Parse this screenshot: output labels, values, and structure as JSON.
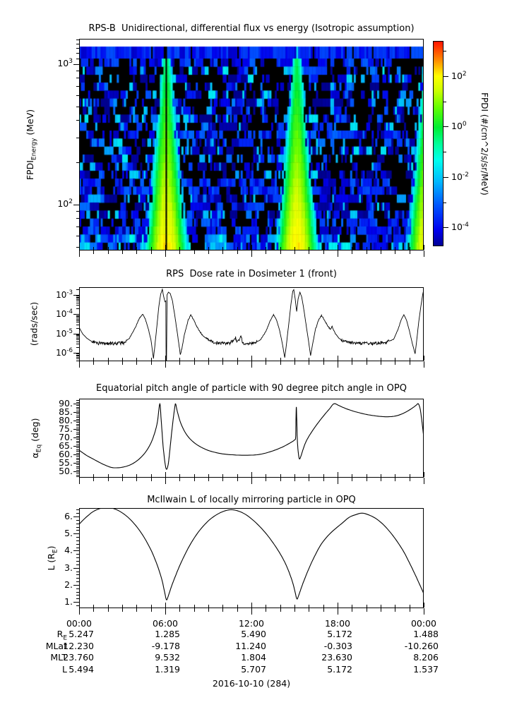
{
  "page": {
    "background": "#ffffff",
    "text_color": "#000000",
    "date_label": "2016-10-10 (284)"
  },
  "xaxis": {
    "range_hours": [
      0,
      24
    ],
    "minor_step_hours": 1,
    "major_ticks": [
      {
        "hour": 0,
        "label": "00:00"
      },
      {
        "hour": 6,
        "label": "06:00"
      },
      {
        "hour": 12,
        "label": "12:00"
      },
      {
        "hour": 18,
        "label": "18:00"
      },
      {
        "hour": 24,
        "label": "00:00"
      }
    ]
  },
  "ephemeris": {
    "rows": [
      {
        "label": "R_{E}",
        "values": [
          "5.247",
          "1.285",
          "5.490",
          "5.172",
          "1.488"
        ]
      },
      {
        "label": "MLat",
        "values": [
          "12.230",
          "-9.178",
          "11.240",
          "-0.303",
          "-10.260"
        ]
      },
      {
        "label": "MLT",
        "values": [
          "23.760",
          "9.532",
          "1.804",
          "23.630",
          "8.206"
        ]
      },
      {
        "label": "L",
        "values": [
          "5.494",
          "1.319",
          "5.707",
          "5.172",
          "1.537"
        ]
      }
    ]
  },
  "chart_data": [
    {
      "type": "heatmap",
      "title": "RPS-B  Unidirectional, differential flux vs energy (Isotropic assumption)",
      "ylabel": "FPDI_{Energy} (MeV)",
      "yscale": "log",
      "ylim_mev": [
        47,
        1520
      ],
      "yticks": [
        {
          "value": 100,
          "label": "10^{2}"
        },
        {
          "value": 1000,
          "label": "10^{3}"
        }
      ],
      "colorbar": {
        "label": "FPDI (#/cm^2/s/sr/MeV)",
        "scale": "log",
        "range_log10": [
          -4.75,
          3.4
        ],
        "ticks": [
          {
            "value": 2,
            "label": "10^{2}"
          },
          {
            "value": 0,
            "label": "10^{0}"
          },
          {
            "value": -2,
            "label": "10^{-2}"
          },
          {
            "value": -4,
            "label": "10^{-4}"
          }
        ],
        "minor_tick_values": [
          3,
          1,
          -1,
          -3
        ],
        "colormap_stops": [
          [
            0,
            "#00008f"
          ],
          [
            0.08,
            "#0000ee"
          ],
          [
            0.2,
            "#0055ff"
          ],
          [
            0.32,
            "#00bbff"
          ],
          [
            0.42,
            "#00ffee"
          ],
          [
            0.5,
            "#00ff99"
          ],
          [
            0.58,
            "#00ee33"
          ],
          [
            0.68,
            "#66ff00"
          ],
          [
            0.76,
            "#ccff00"
          ],
          [
            0.83,
            "#ffff00"
          ],
          [
            0.91,
            "#ff8800"
          ],
          [
            1,
            "#ff1100"
          ]
        ]
      },
      "features": {
        "perigee_plume_centers_h": [
          6.08,
          15.17,
          24.3
        ],
        "plume_peak_log10_flux_low_energy": 2.2,
        "plume_peak_log10_flux_high_energy": -0.3,
        "data_gap_h": [
          6.03,
          6.13
        ],
        "center_streak_plume_h": 15.17,
        "top_band": "solid blue highest-energy channel",
        "background": "black with speckled blue/cyan low flux",
        "speckle_log10_flux_range": [
          -4.9,
          -1.5
        ],
        "seed": 1234,
        "cols": 192,
        "rows": 24
      }
    },
    {
      "type": "line",
      "title": "RPS  Dose rate in Dosimeter 1 (front)",
      "ylabel": "(rads/sec)",
      "yscale": "log",
      "ylim_log10": [
        -6.44,
        -2.59
      ],
      "yticks": [
        {
          "value": -3,
          "label": "10^{-3}"
        },
        {
          "value": -4,
          "label": "10^{-4}"
        },
        {
          "value": -5,
          "label": "10^{-5}"
        },
        {
          "value": -6,
          "label": "10^{-6}"
        }
      ],
      "points_t_log10": [
        [
          0,
          -4.68
        ],
        [
          0.25,
          -5.02
        ],
        [
          0.55,
          -5.25
        ],
        [
          0.9,
          -5.42
        ],
        [
          1.3,
          -5.5
        ],
        [
          2.4,
          -5.52
        ],
        [
          3.1,
          -5.48
        ],
        [
          3.5,
          -5.25
        ],
        [
          3.9,
          -4.72
        ],
        [
          4.2,
          -4.2
        ],
        [
          4.45,
          -4.0
        ],
        [
          4.6,
          -4.22
        ],
        [
          4.8,
          -4.7
        ],
        [
          5.0,
          -5.3
        ],
        [
          5.18,
          -6.3
        ],
        [
          5.28,
          -5.6
        ],
        [
          5.42,
          -4.6
        ],
        [
          5.55,
          -3.6
        ],
        [
          5.68,
          -2.95
        ],
        [
          5.8,
          -2.7
        ],
        [
          5.88,
          -3.05
        ],
        [
          5.98,
          -3.35
        ],
        [
          6.04,
          -3.3
        ],
        [
          6.06,
          -6.45
        ],
        [
          6.09,
          -6.45
        ],
        [
          6.13,
          -2.98
        ],
        [
          6.22,
          -2.85
        ],
        [
          6.35,
          -2.92
        ],
        [
          6.5,
          -3.3
        ],
        [
          6.65,
          -4.0
        ],
        [
          6.85,
          -5.0
        ],
        [
          7.05,
          -6.1
        ],
        [
          7.18,
          -5.7
        ],
        [
          7.35,
          -5.0
        ],
        [
          7.6,
          -4.3
        ],
        [
          7.78,
          -4.02
        ],
        [
          7.95,
          -4.25
        ],
        [
          8.2,
          -4.65
        ],
        [
          8.6,
          -5.1
        ],
        [
          9.0,
          -5.35
        ],
        [
          9.5,
          -5.48
        ],
        [
          10.5,
          -5.52
        ],
        [
          10.9,
          -5.2
        ],
        [
          10.98,
          -5.5
        ],
        [
          11.3,
          -5.15
        ],
        [
          11.38,
          -5.5
        ],
        [
          12.1,
          -5.5
        ],
        [
          12.6,
          -5.35
        ],
        [
          13.0,
          -4.9
        ],
        [
          13.3,
          -4.35
        ],
        [
          13.54,
          -4.02
        ],
        [
          13.75,
          -4.3
        ],
        [
          13.95,
          -4.8
        ],
        [
          14.15,
          -5.5
        ],
        [
          14.32,
          -6.25
        ],
        [
          14.45,
          -5.5
        ],
        [
          14.6,
          -4.5
        ],
        [
          14.75,
          -3.5
        ],
        [
          14.88,
          -2.8
        ],
        [
          14.95,
          -2.72
        ],
        [
          15.05,
          -3.2
        ],
        [
          15.15,
          -3.85
        ],
        [
          15.25,
          -3.2
        ],
        [
          15.38,
          -2.85
        ],
        [
          15.5,
          -3.1
        ],
        [
          15.62,
          -3.6
        ],
        [
          15.8,
          -4.5
        ],
        [
          16.0,
          -5.5
        ],
        [
          16.12,
          -6.15
        ],
        [
          16.25,
          -5.6
        ],
        [
          16.45,
          -4.8
        ],
        [
          16.7,
          -4.25
        ],
        [
          16.88,
          -4.05
        ],
        [
          17.1,
          -4.3
        ],
        [
          17.3,
          -4.6
        ],
        [
          17.5,
          -4.78
        ],
        [
          17.62,
          -4.62
        ],
        [
          17.8,
          -4.95
        ],
        [
          18.1,
          -5.25
        ],
        [
          18.5,
          -5.42
        ],
        [
          19.2,
          -5.5
        ],
        [
          20.5,
          -5.52
        ],
        [
          21.4,
          -5.45
        ],
        [
          21.9,
          -5.3
        ],
        [
          22.2,
          -4.8
        ],
        [
          22.45,
          -4.25
        ],
        [
          22.62,
          -4.02
        ],
        [
          22.8,
          -4.3
        ],
        [
          23.0,
          -4.85
        ],
        [
          23.2,
          -5.5
        ],
        [
          23.4,
          -6.05
        ],
        [
          23.52,
          -5.3
        ],
        [
          23.65,
          -4.4
        ],
        [
          23.8,
          -3.6
        ],
        [
          23.92,
          -3.0
        ],
        [
          24,
          -2.72
        ]
      ],
      "noise_segments": [
        [
          0.9,
          3.3,
          0.09
        ],
        [
          8.8,
          12.4,
          0.08
        ],
        [
          18.2,
          21.6,
          0.08
        ],
        [
          3.5,
          5.0,
          0.02
        ],
        [
          6.5,
          8.6,
          0.03
        ],
        [
          12.6,
          14.0,
          0.02
        ],
        [
          16.3,
          17.9,
          0.03
        ],
        [
          21.7,
          22.4,
          0.02
        ]
      ]
    },
    {
      "type": "line",
      "title": "Equatorial pitch angle of particle with 90 degree pitch angle in OPQ",
      "ylabel": "α_{Eq} (deg)",
      "yscale": "linear",
      "ylim": [
        46.25,
        92.9
      ],
      "minor_step": 1,
      "yticks": [
        {
          "value": 90,
          "label": "90."
        },
        {
          "value": 85,
          "label": "85."
        },
        {
          "value": 80,
          "label": "80."
        },
        {
          "value": 75,
          "label": "75."
        },
        {
          "value": 70,
          "label": "70."
        },
        {
          "value": 65,
          "label": "65."
        },
        {
          "value": 60,
          "label": "60."
        },
        {
          "value": 55,
          "label": "55."
        },
        {
          "value": 50,
          "label": "50."
        }
      ],
      "points": [
        [
          0,
          62.5
        ],
        [
          0.5,
          59.5
        ],
        [
          1.0,
          57.2
        ],
        [
          1.6,
          54.5
        ],
        [
          2.2,
          52.4
        ],
        [
          2.6,
          52.1
        ],
        [
          3.0,
          52.4
        ],
        [
          3.5,
          53.6
        ],
        [
          4.0,
          56
        ],
        [
          4.5,
          60
        ],
        [
          4.9,
          65
        ],
        [
          5.2,
          71
        ],
        [
          5.45,
          79
        ],
        [
          5.62,
          89.8
        ],
        [
          5.72,
          80
        ],
        [
          5.85,
          65
        ],
        [
          6.0,
          54
        ],
        [
          6.1,
          51.2
        ],
        [
          6.22,
          55
        ],
        [
          6.35,
          65
        ],
        [
          6.5,
          77
        ],
        [
          6.65,
          87
        ],
        [
          6.72,
          89.8
        ],
        [
          6.85,
          85
        ],
        [
          7.1,
          78
        ],
        [
          7.5,
          71.5
        ],
        [
          8.0,
          67
        ],
        [
          8.6,
          63.8
        ],
        [
          9.2,
          61.8
        ],
        [
          10.0,
          60.3
        ],
        [
          10.8,
          59.7
        ],
        [
          11.6,
          59.5
        ],
        [
          12.4,
          59.8
        ],
        [
          13.0,
          60.8
        ],
        [
          13.6,
          62.4
        ],
        [
          14.2,
          64.5
        ],
        [
          14.7,
          66.8
        ],
        [
          15.0,
          68.5
        ],
        [
          15.08,
          70
        ],
        [
          15.1,
          79
        ],
        [
          15.13,
          88
        ],
        [
          15.16,
          80
        ],
        [
          15.2,
          68
        ],
        [
          15.28,
          60
        ],
        [
          15.35,
          57.3
        ],
        [
          15.45,
          59
        ],
        [
          15.6,
          63
        ],
        [
          15.8,
          67.5
        ],
        [
          16.1,
          72
        ],
        [
          16.5,
          77
        ],
        [
          17.0,
          82.5
        ],
        [
          17.45,
          87
        ],
        [
          17.75,
          89.9
        ],
        [
          18.1,
          88.8
        ],
        [
          18.5,
          87.3
        ],
        [
          19.0,
          85.8
        ],
        [
          19.5,
          84.6
        ],
        [
          20.0,
          83.6
        ],
        [
          20.5,
          82.9
        ],
        [
          21.0,
          82.4
        ],
        [
          21.5,
          82.2
        ],
        [
          22.0,
          82.6
        ],
        [
          22.4,
          83.6
        ],
        [
          22.8,
          85.2
        ],
        [
          23.2,
          87.3
        ],
        [
          23.5,
          89.2
        ],
        [
          23.62,
          89.9
        ],
        [
          23.75,
          87
        ],
        [
          23.85,
          81
        ],
        [
          23.95,
          74
        ],
        [
          24,
          70.5
        ]
      ]
    },
    {
      "type": "line",
      "title": "McIlwain L of locally mirroring particle in OPQ",
      "ylabel": "L (R_{E})",
      "yscale": "linear",
      "ylim": [
        0.63,
        6.5
      ],
      "minor_step": 0.2,
      "yticks": [
        {
          "value": 6,
          "label": "6."
        },
        {
          "value": 5,
          "label": "5."
        },
        {
          "value": 4,
          "label": "4."
        },
        {
          "value": 3,
          "label": "3."
        },
        {
          "value": 2,
          "label": "2."
        },
        {
          "value": 1,
          "label": "1."
        }
      ],
      "points": [
        [
          0,
          5.55
        ],
        [
          0.5,
          5.97
        ],
        [
          1.0,
          6.3
        ],
        [
          1.5,
          6.48
        ],
        [
          2.0,
          6.52
        ],
        [
          2.5,
          6.44
        ],
        [
          3.0,
          6.22
        ],
        [
          3.5,
          5.88
        ],
        [
          4.0,
          5.42
        ],
        [
          4.5,
          4.82
        ],
        [
          5.0,
          4.05
        ],
        [
          5.4,
          3.25
        ],
        [
          5.75,
          2.35
        ],
        [
          5.95,
          1.6
        ],
        [
          6.08,
          1.13
        ],
        [
          6.2,
          1.32
        ],
        [
          6.45,
          1.95
        ],
        [
          6.75,
          2.6
        ],
        [
          7.1,
          3.3
        ],
        [
          7.6,
          4.15
        ],
        [
          8.1,
          4.85
        ],
        [
          8.6,
          5.4
        ],
        [
          9.1,
          5.82
        ],
        [
          9.6,
          6.12
        ],
        [
          10.1,
          6.32
        ],
        [
          10.6,
          6.4
        ],
        [
          11.1,
          6.32
        ],
        [
          11.6,
          6.12
        ],
        [
          12.1,
          5.8
        ],
        [
          12.6,
          5.4
        ],
        [
          13.1,
          4.92
        ],
        [
          13.6,
          4.35
        ],
        [
          14.1,
          3.68
        ],
        [
          14.5,
          3.0
        ],
        [
          14.85,
          2.2
        ],
        [
          15.05,
          1.55
        ],
        [
          15.17,
          1.17
        ],
        [
          15.3,
          1.4
        ],
        [
          15.55,
          2.0
        ],
        [
          15.9,
          2.75
        ],
        [
          16.3,
          3.5
        ],
        [
          16.8,
          4.3
        ],
        [
          17.3,
          4.85
        ],
        [
          17.8,
          5.25
        ],
        [
          18.3,
          5.6
        ],
        [
          18.8,
          5.95
        ],
        [
          19.3,
          6.12
        ],
        [
          19.7,
          6.2
        ],
        [
          20.1,
          6.12
        ],
        [
          20.6,
          5.92
        ],
        [
          21.1,
          5.6
        ],
        [
          21.6,
          5.15
        ],
        [
          22.1,
          4.6
        ],
        [
          22.6,
          3.95
        ],
        [
          23.0,
          3.3
        ],
        [
          23.4,
          2.6
        ],
        [
          23.7,
          2.05
        ],
        [
          23.9,
          1.68
        ],
        [
          24,
          1.48
        ]
      ]
    }
  ]
}
